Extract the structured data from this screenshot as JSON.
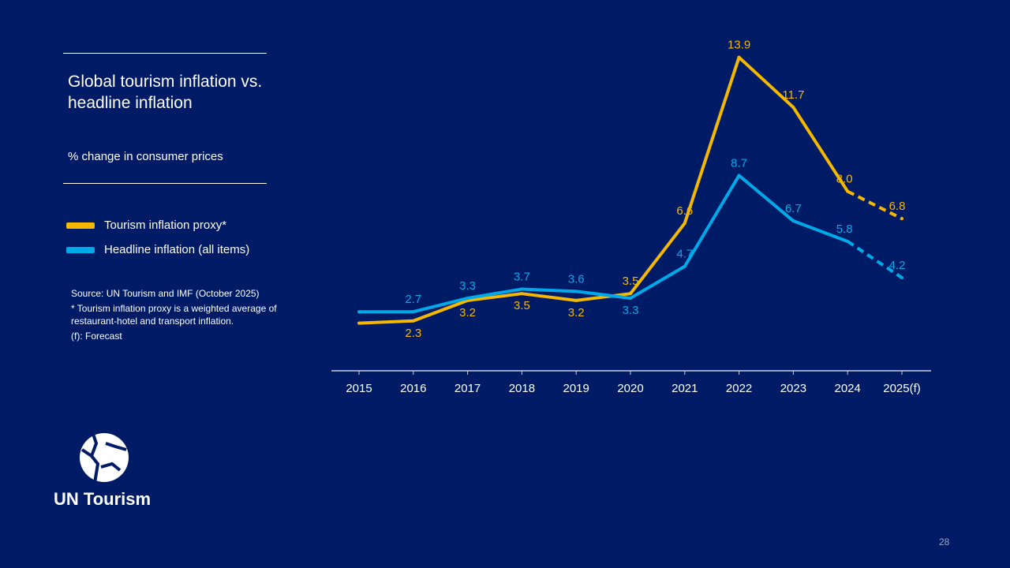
{
  "chart_data": {
    "type": "line",
    "title": "Global tourism inflation vs. headline inflation",
    "subtitle": "% change in consumer prices",
    "categories": [
      "2015",
      "2016",
      "2017",
      "2018",
      "2019",
      "2020",
      "2021",
      "2022",
      "2023",
      "2024",
      "2025(f)"
    ],
    "series": [
      {
        "name": "Tourism inflation proxy*",
        "color": "#f5b800",
        "values": [
          2.2,
          2.3,
          3.2,
          3.5,
          3.2,
          3.5,
          6.6,
          13.9,
          11.7,
          8.0,
          6.8
        ],
        "labels": [
          null,
          "2.3",
          "3.2",
          "3.5",
          "3.2",
          "3.5",
          "6.6",
          "13.9",
          "11.7",
          "8.0",
          "6.8"
        ],
        "label_pos": [
          null,
          "below",
          "below",
          "below",
          "below",
          "above",
          "above",
          "above",
          "above",
          "above",
          "above"
        ]
      },
      {
        "name": "Headline inflation (all items)",
        "color": "#00a9e8",
        "values": [
          2.7,
          2.7,
          3.3,
          3.7,
          3.6,
          3.3,
          4.7,
          8.7,
          6.7,
          5.8,
          4.2
        ],
        "labels": [
          null,
          "2.7",
          "3.3",
          "3.7",
          "3.6",
          "3.3",
          "4.7",
          "8.7",
          "6.7",
          "5.8",
          "4.2"
        ],
        "label_pos": [
          null,
          "above",
          "above",
          "above",
          "above",
          "below",
          "above",
          "above",
          "above",
          "above",
          "above"
        ]
      }
    ],
    "forecast_from_index": 9,
    "ylim": [
      0,
      14
    ],
    "grid": false,
    "legend": "left"
  },
  "notes": {
    "source": "Source: UN Tourism and IMF (October 2025)",
    "footnote": "* Tourism inflation proxy is a weighted average of restaurant-hotel and transport inflation.",
    "forecast": "(f): Forecast"
  },
  "logo_text": "UN Tourism",
  "page_number": "28"
}
